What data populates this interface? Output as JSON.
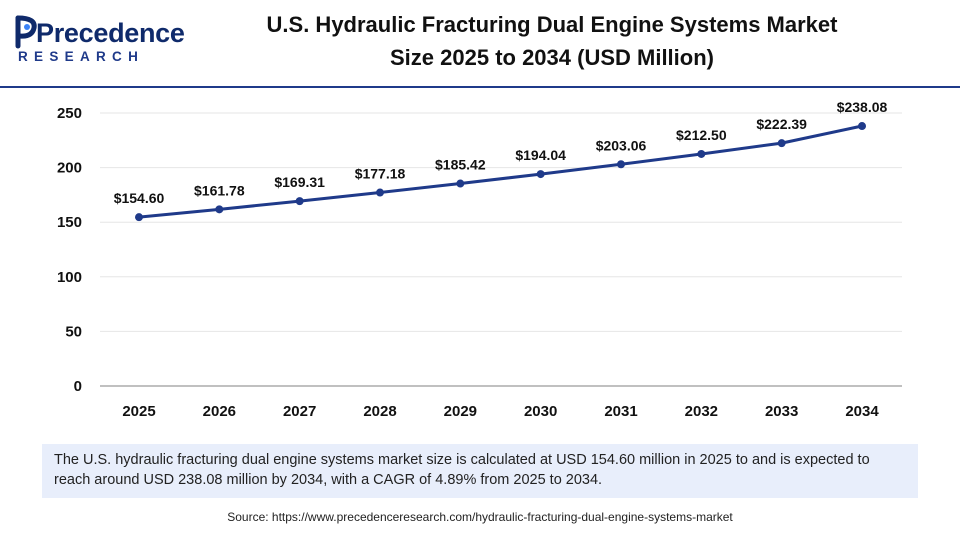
{
  "logo": {
    "wordmark": "Precedence",
    "subtitle": "RESEARCH"
  },
  "title": {
    "line1": "U.S. Hydraulic Fracturing Dual Engine Systems Market",
    "line2": "Size 2025 to 2034 (USD Million)"
  },
  "colors": {
    "line": "#1f3a8a",
    "divider": "#1f3a8a",
    "description_bg": "#e8eefb"
  },
  "chart_data": {
    "type": "line",
    "title": "U.S. Hydraulic Fracturing Dual Engine Systems Market Size 2025 to 2034 (USD Million)",
    "categories": [
      "2025",
      "2026",
      "2027",
      "2028",
      "2029",
      "2030",
      "2031",
      "2032",
      "2033",
      "2034"
    ],
    "series": [
      {
        "values": [
          154.6,
          161.78,
          169.31,
          177.18,
          185.42,
          194.04,
          203.06,
          212.5,
          222.39,
          238.08
        ],
        "labels": [
          "$154.60",
          "$161.78",
          "$169.31",
          "$177.18",
          "$185.42",
          "$194.04",
          "$203.06",
          "$212.50",
          "$222.39",
          "$238.08"
        ]
      }
    ],
    "y_ticks": [
      "0",
      "50",
      "100",
      "150",
      "200",
      "250"
    ],
    "ylim": [
      0,
      250
    ],
    "xlabel": "",
    "ylabel": "",
    "grid": true,
    "legend": "none"
  },
  "description": "The U.S. hydraulic fracturing dual engine systems market size is calculated at USD 154.60 million in 2025 to and is expected to reach around USD 238.08 million by 2034, with a CAGR of 4.89% from 2025 to 2034.",
  "source": "Source: https://www.precedenceresearch.com/hydraulic-fracturing-dual-engine-systems-market"
}
